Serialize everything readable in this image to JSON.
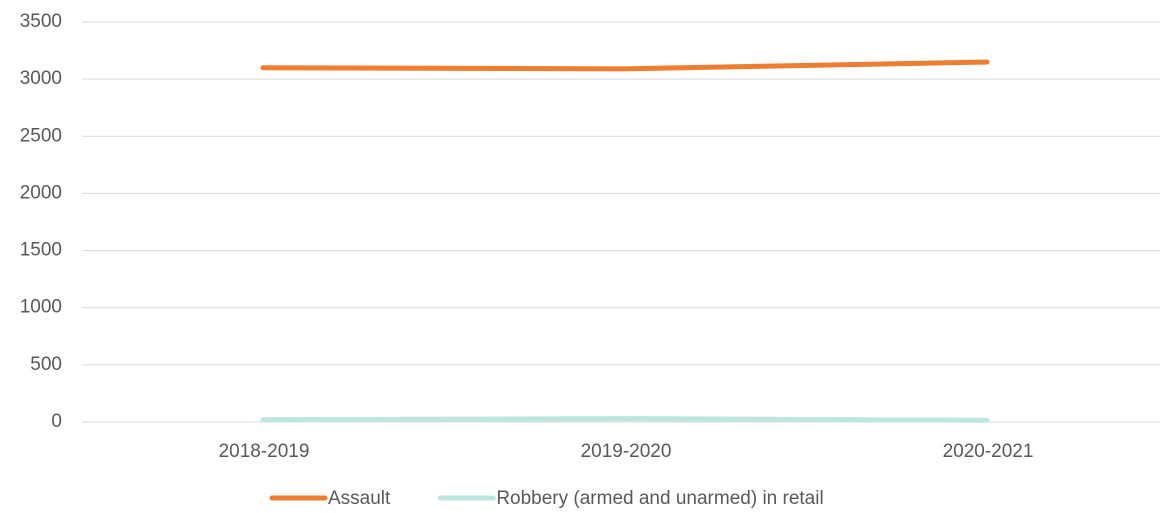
{
  "chart_data": {
    "type": "line",
    "categories": [
      "2018-2019",
      "2019-2020",
      "2020-2021"
    ],
    "series": [
      {
        "name": "Assault",
        "color": "#ed7d31",
        "values": [
          3100,
          3090,
          3150
        ]
      },
      {
        "name": "Robbery (armed and unarmed) in retail",
        "color": "#bde6e1",
        "values": [
          20,
          30,
          15
        ]
      }
    ],
    "ylim": [
      0,
      3500
    ],
    "yticks": [
      0,
      500,
      1000,
      1500,
      2000,
      2500,
      3000,
      3500
    ],
    "grid": true,
    "legend": "bottom"
  }
}
